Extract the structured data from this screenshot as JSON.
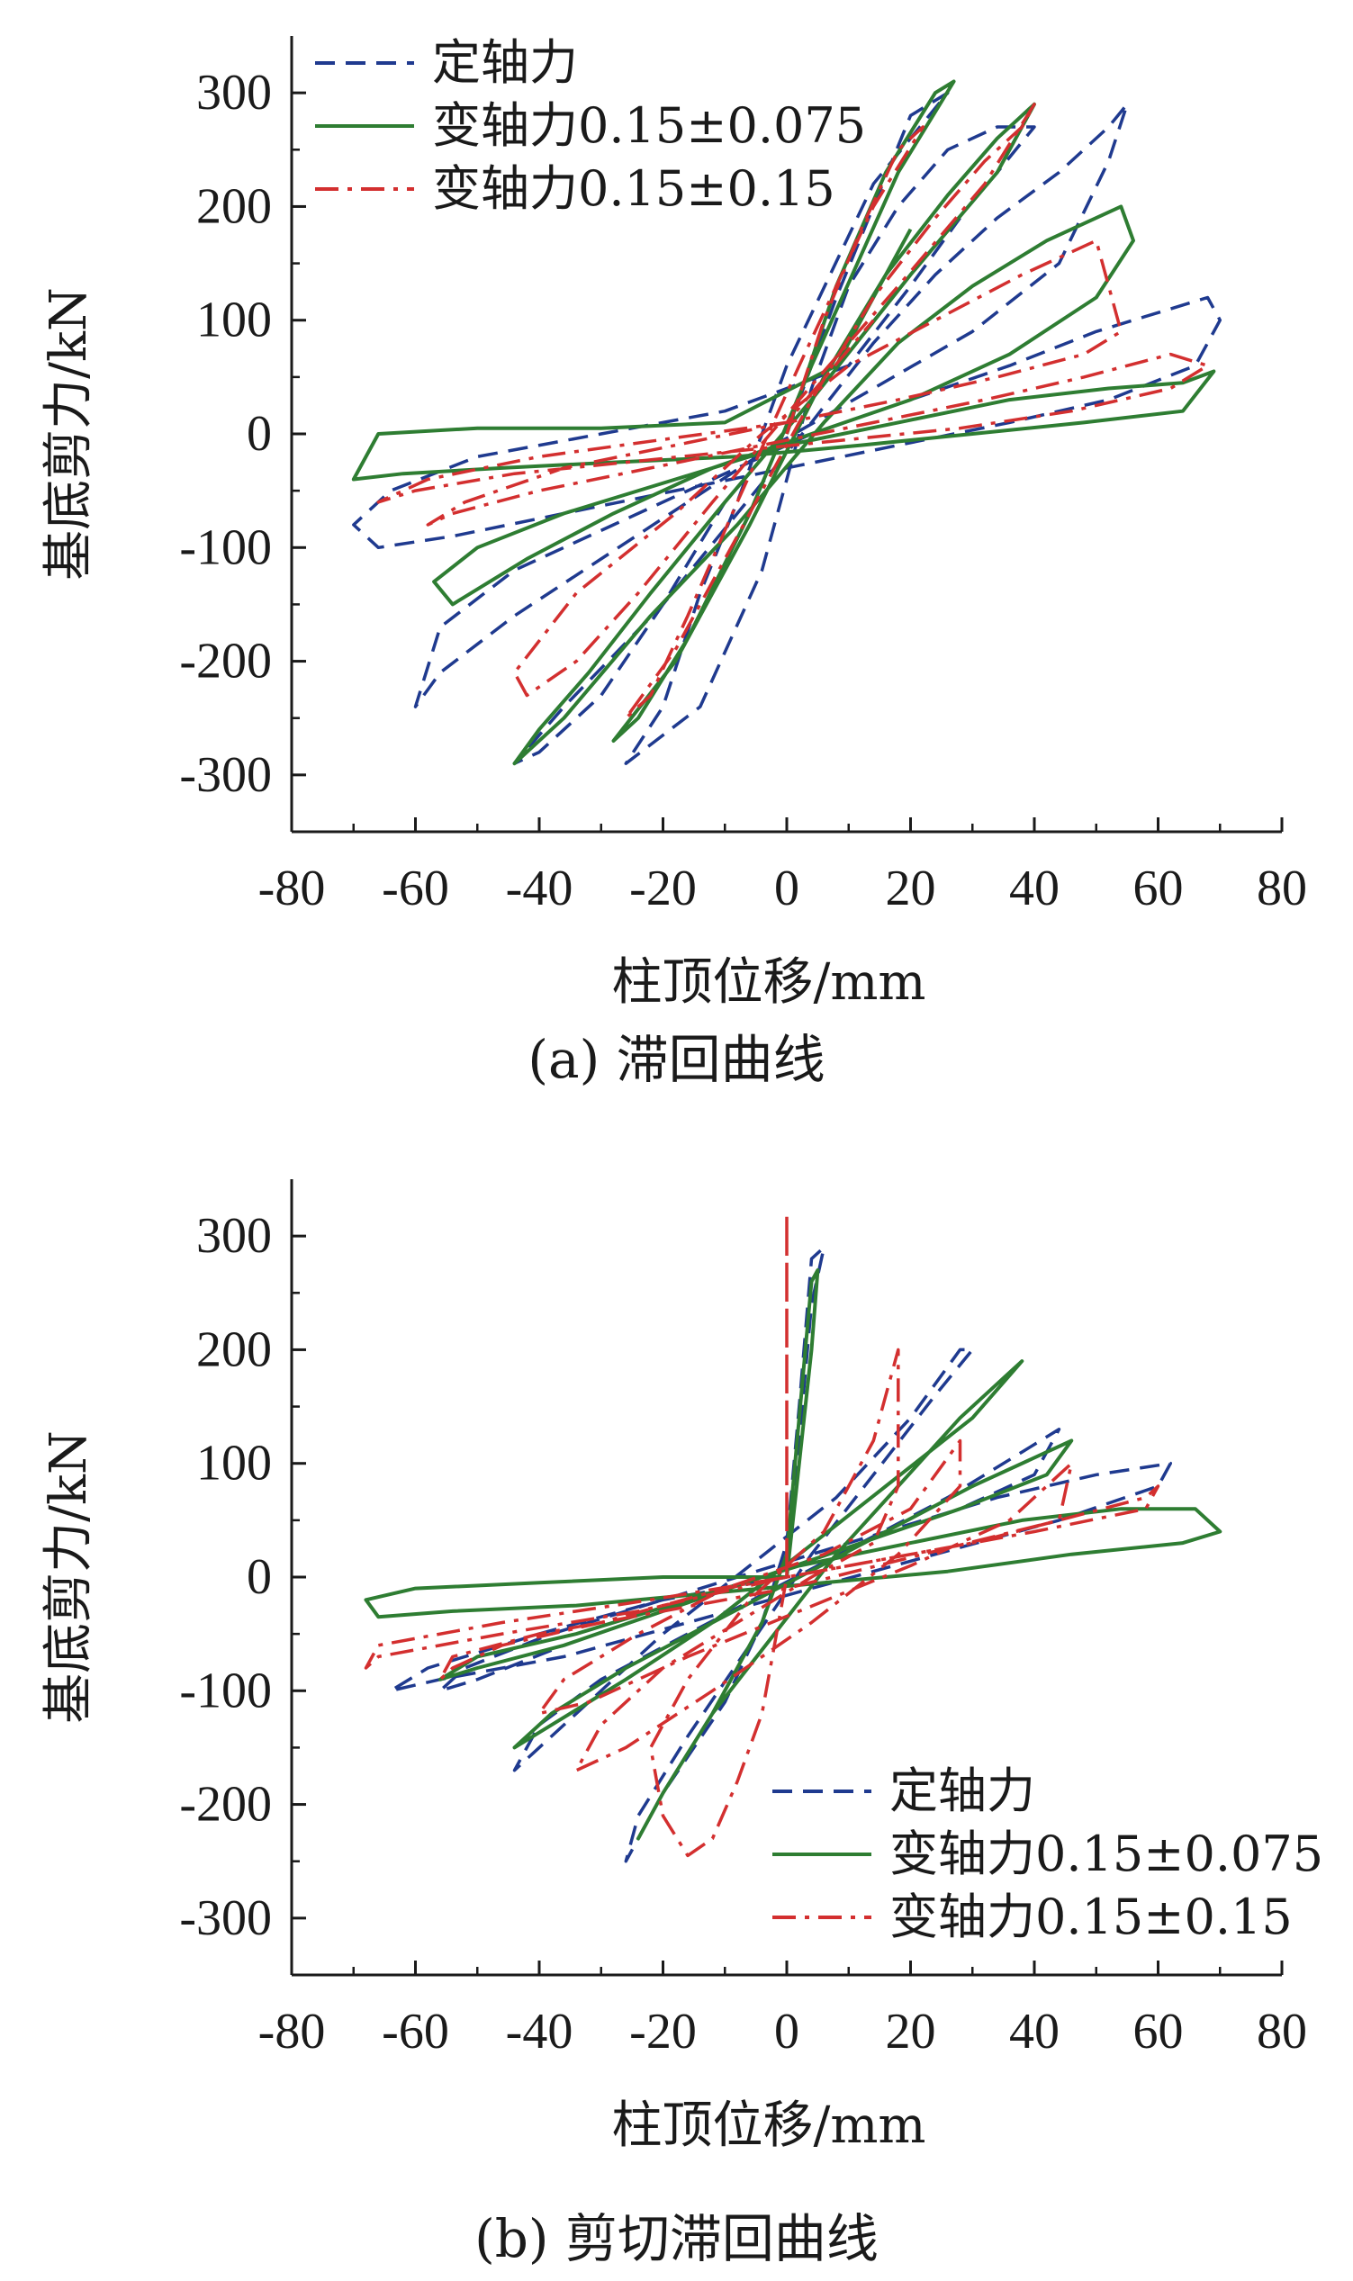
{
  "figures": [
    {
      "caption": "(a) 滞回曲线",
      "xlabel": "柱顶位移/mm",
      "ylabel": "基底剪力/kN",
      "legend_position": "top-left"
    },
    {
      "caption": "(b) 剪切滞回曲线",
      "xlabel": "柱顶位移/mm",
      "ylabel": "基底剪力/kN",
      "legend_position": "bottom-right"
    }
  ],
  "colors": {
    "series_constant": "#1f3a8f",
    "series_var_0075": "#2e7d32",
    "series_var_015": "#d32f2f",
    "axis": "#1a1a1a"
  },
  "chart_data": [
    {
      "type": "line",
      "title": "(a) 滞回曲线",
      "xlabel": "柱顶位移/mm",
      "ylabel": "基底剪力/kN",
      "xlim": [
        -80,
        80
      ],
      "ylim": [
        -350,
        350
      ],
      "xticks": [
        -80,
        -60,
        -40,
        -20,
        0,
        20,
        40,
        60,
        80
      ],
      "yticks": [
        -300,
        -200,
        -100,
        0,
        100,
        200,
        300
      ],
      "grid": false,
      "legend_position": "top-left",
      "series": [
        {
          "name": "定轴力",
          "style": "dashed",
          "x": [
            0,
            8,
            14,
            20,
            26,
            14,
            0,
            -8,
            -14,
            -20,
            -26,
            -14,
            -4,
            4,
            10,
            18,
            26,
            34,
            40,
            34,
            20,
            4,
            -10,
            -20,
            -30,
            -40,
            -44,
            -36,
            -20,
            -8,
            4,
            14,
            24,
            34,
            44,
            52,
            55,
            52,
            44,
            30,
            14,
            -2,
            -16,
            -30,
            -44,
            -56,
            -60,
            -56,
            -44,
            -28,
            -12,
            4,
            20,
            36,
            50,
            62,
            68,
            70,
            66,
            52,
            36,
            18,
            0,
            -18,
            -36,
            -54,
            -66,
            -70,
            -64,
            -50,
            -30,
            -10,
            10,
            20,
            28
          ],
          "y": [
            0,
            120,
            200,
            280,
            300,
            220,
            60,
            -60,
            -140,
            -240,
            -290,
            -240,
            -120,
            40,
            130,
            200,
            250,
            270,
            270,
            230,
            140,
            30,
            -60,
            -150,
            -230,
            -280,
            -290,
            -240,
            -150,
            -70,
            10,
            80,
            140,
            190,
            230,
            270,
            290,
            240,
            150,
            90,
            40,
            -10,
            -60,
            -110,
            -160,
            -210,
            -240,
            -170,
            -120,
            -80,
            -40,
            0,
            30,
            60,
            90,
            110,
            120,
            100,
            60,
            30,
            10,
            -10,
            -30,
            -50,
            -70,
            -90,
            -100,
            -80,
            -50,
            -20,
            0,
            20,
            60,
            130,
            190
          ]
        },
        {
          "name": "变轴力0.15±0.075",
          "style": "solid",
          "x": [
            0,
            8,
            16,
            24,
            27,
            18,
            4,
            -6,
            -16,
            -24,
            -28,
            -18,
            -6,
            6,
            16,
            26,
            34,
            40,
            34,
            20,
            4,
            -10,
            -22,
            -32,
            -40,
            -44,
            -36,
            -22,
            -8,
            6,
            18,
            30,
            42,
            54,
            56,
            50,
            36,
            20,
            4,
            -12,
            -28,
            -42,
            -54,
            -57,
            -50,
            -36,
            -18,
            0,
            18,
            36,
            52,
            64,
            69,
            64,
            48,
            30,
            12,
            -8,
            -28,
            -46,
            -62,
            -70,
            -66,
            -50,
            -30,
            -10,
            8,
            20
          ],
          "y": [
            0,
            130,
            230,
            300,
            310,
            230,
            60,
            -70,
            -180,
            -250,
            -270,
            -200,
            -80,
            50,
            140,
            210,
            260,
            290,
            230,
            140,
            30,
            -60,
            -140,
            -210,
            -260,
            -290,
            -250,
            -160,
            -80,
            10,
            80,
            130,
            170,
            200,
            170,
            120,
            70,
            30,
            0,
            -30,
            -70,
            -110,
            -150,
            -130,
            -100,
            -70,
            -40,
            -10,
            10,
            30,
            40,
            45,
            55,
            20,
            10,
            0,
            -10,
            -20,
            -25,
            -30,
            -35,
            -40,
            0,
            5,
            5,
            10,
            60,
            180
          ]
        },
        {
          "name": "变轴力0.15±0.15",
          "style": "dashdot",
          "x": [
            0,
            6,
            12,
            18,
            22,
            14,
            2,
            -8,
            -16,
            -22,
            -26,
            -18,
            -8,
            4,
            14,
            24,
            32,
            38,
            40,
            32,
            18,
            2,
            -12,
            -24,
            -34,
            -42,
            -44,
            -34,
            -18,
            -4,
            10,
            24,
            38,
            50,
            54,
            48,
            34,
            18,
            0,
            -18,
            -36,
            -52,
            -58,
            -54,
            -40,
            -22,
            -4,
            14,
            32,
            48,
            62,
            68,
            62,
            46,
            28,
            10,
            -8,
            -26,
            -44,
            -60,
            -66,
            -58,
            -40,
            -20,
            0,
            14
          ],
          "y": [
            0,
            100,
            180,
            250,
            270,
            200,
            60,
            -60,
            -160,
            -230,
            -250,
            -190,
            -90,
            30,
            120,
            190,
            240,
            270,
            290,
            220,
            130,
            30,
            -60,
            -140,
            -200,
            -230,
            -210,
            -140,
            -70,
            0,
            60,
            100,
            140,
            170,
            90,
            70,
            50,
            30,
            10,
            -10,
            -30,
            -60,
            -80,
            -70,
            -50,
            -30,
            -10,
            10,
            30,
            50,
            70,
            60,
            40,
            20,
            5,
            -5,
            -15,
            -25,
            -35,
            -50,
            -60,
            -40,
            -20,
            -5,
            10,
            100
          ]
        }
      ]
    },
    {
      "type": "line",
      "title": "(b) 剪切滞回曲线",
      "xlabel": "柱顶位移/mm",
      "ylabel": "基底剪力/kN",
      "xlim": [
        -80,
        80
      ],
      "ylim": [
        -350,
        350
      ],
      "xticks": [
        -80,
        -60,
        -40,
        -20,
        0,
        20,
        40,
        60,
        80
      ],
      "yticks": [
        -300,
        -200,
        -100,
        0,
        100,
        200,
        300
      ],
      "grid": false,
      "legend_position": "bottom-right",
      "series": [
        {
          "name": "定轴力",
          "style": "dashed",
          "x": [
            0,
            2,
            4,
            6,
            4,
            2,
            0,
            -4,
            -10,
            -20,
            -26,
            -24,
            -16,
            -6,
            4,
            14,
            24,
            30,
            28,
            20,
            8,
            -6,
            -20,
            -32,
            -40,
            -44,
            -40,
            -30,
            -16,
            -2,
            12,
            26,
            38,
            44,
            40,
            28,
            12,
            -4,
            -20,
            -36,
            -50,
            -56,
            -52,
            -38,
            -20,
            -2,
            16,
            34,
            50,
            62,
            60,
            44,
            24,
            4,
            -16,
            -36,
            -56,
            -64,
            -58,
            -40,
            -20,
            0
          ],
          "y": [
            0,
            120,
            240,
            290,
            280,
            150,
            30,
            -40,
            -110,
            -190,
            -250,
            -210,
            -140,
            -60,
            20,
            90,
            160,
            200,
            200,
            140,
            70,
            10,
            -50,
            -110,
            -150,
            -170,
            -130,
            -90,
            -50,
            -10,
            30,
            70,
            110,
            130,
            90,
            60,
            30,
            0,
            -30,
            -60,
            -90,
            -100,
            -80,
            -50,
            -20,
            10,
            40,
            70,
            90,
            100,
            80,
            50,
            20,
            -10,
            -40,
            -70,
            -90,
            -100,
            -80,
            -50,
            -20,
            0
          ]
        },
        {
          "name": "变轴力0.15±0.075",
          "style": "solid",
          "x": [
            0,
            2,
            4,
            5,
            4,
            2,
            0,
            -4,
            -12,
            -20,
            -24,
            -20,
            -12,
            -2,
            8,
            18,
            28,
            36,
            38,
            30,
            16,
            2,
            -12,
            -26,
            -38,
            -44,
            -38,
            -26,
            -12,
            2,
            16,
            30,
            42,
            46,
            42,
            28,
            12,
            -4,
            -20,
            -36,
            -50,
            -56,
            -50,
            -34,
            -16,
            2,
            20,
            38,
            54,
            66,
            70,
            64,
            46,
            26,
            6,
            -14,
            -34,
            -54,
            -66,
            -68,
            -60,
            -40,
            -20,
            0
          ],
          "y": [
            0,
            100,
            200,
            270,
            260,
            140,
            20,
            -40,
            -120,
            -190,
            -230,
            -190,
            -120,
            -50,
            20,
            80,
            140,
            180,
            190,
            140,
            80,
            20,
            -40,
            -90,
            -130,
            -150,
            -120,
            -80,
            -40,
            0,
            40,
            80,
            110,
            120,
            90,
            60,
            30,
            0,
            -30,
            -60,
            -80,
            -90,
            -70,
            -50,
            -20,
            10,
            30,
            50,
            60,
            60,
            40,
            30,
            20,
            5,
            -5,
            -15,
            -25,
            -30,
            -35,
            -20,
            -10,
            -5,
            0,
            0
          ]
        },
        {
          "name": "变轴力0.15±0.15",
          "style": "dashdot",
          "x": [
            0,
            0,
            0,
            0,
            -2,
            -4,
            -8,
            -12,
            -16,
            -20,
            -22,
            -16,
            -6,
            6,
            14,
            18,
            18,
            14,
            4,
            -8,
            -20,
            -30,
            -34,
            -26,
            -12,
            4,
            18,
            28,
            28,
            20,
            6,
            -10,
            -24,
            -36,
            -40,
            -32,
            -16,
            2,
            20,
            36,
            44,
            46,
            44,
            30,
            10,
            -10,
            -30,
            -46,
            -54,
            -56,
            -54,
            -40,
            -20,
            0,
            22,
            44,
            58,
            60,
            58,
            40,
            20,
            0,
            -22,
            -46,
            -66,
            -68,
            -66,
            -46,
            -24,
            0
          ],
          "y": [
            0,
            320,
            160,
            0,
            -60,
            -120,
            -180,
            -230,
            -245,
            -210,
            -150,
            -90,
            -20,
            40,
            120,
            200,
            80,
            30,
            0,
            -40,
            -80,
            -130,
            -170,
            -150,
            -100,
            -40,
            20,
            80,
            120,
            60,
            20,
            -10,
            -50,
            -90,
            -120,
            -110,
            -70,
            -30,
            10,
            50,
            90,
            100,
            50,
            30,
            10,
            -10,
            -40,
            -60,
            -80,
            -90,
            -70,
            -50,
            -30,
            -10,
            20,
            50,
            70,
            80,
            60,
            40,
            20,
            0,
            -20,
            -40,
            -60,
            -80,
            -70,
            -50,
            -30,
            0
          ]
        }
      ]
    }
  ]
}
